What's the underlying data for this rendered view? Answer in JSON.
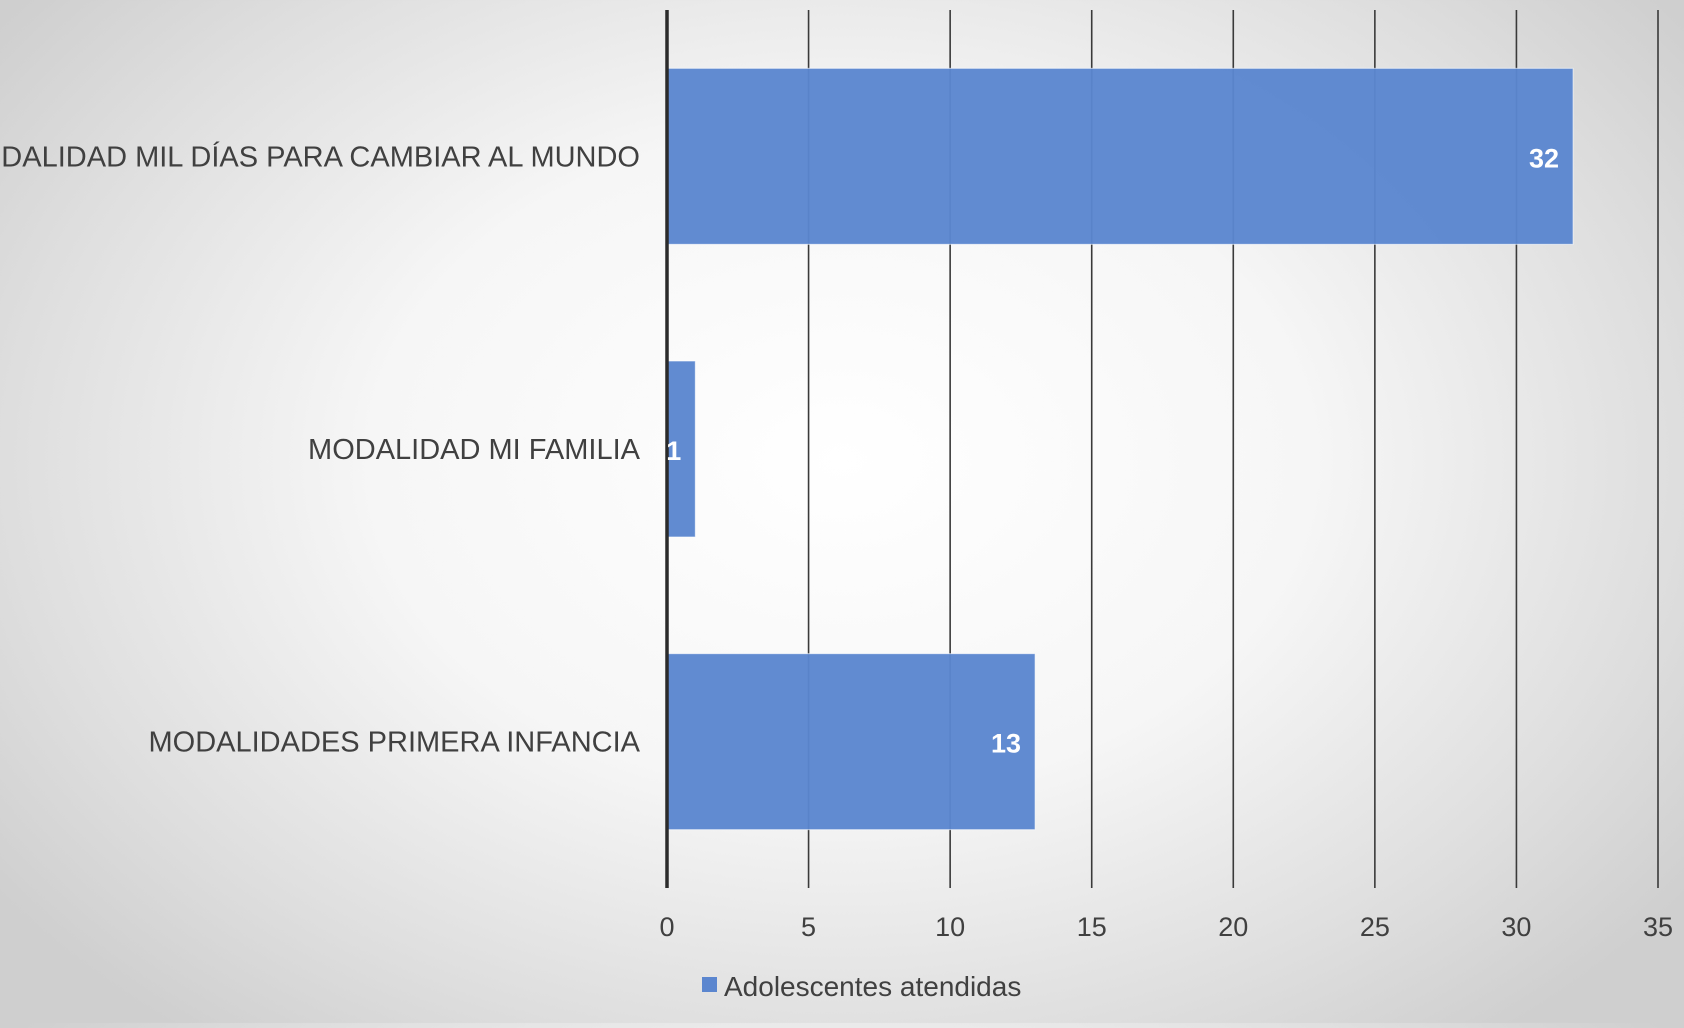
{
  "chart_data": {
    "type": "bar",
    "orientation": "horizontal",
    "categories": [
      "MODALIDAD MIL DÍAS PARA CAMBIAR AL MUNDO",
      "MODALIDAD MI FAMILIA",
      "MODALIDADES PRIMERA INFANCIA"
    ],
    "series": [
      {
        "name": "Adolescentes atendidas",
        "values": [
          32,
          1,
          13
        ],
        "color": "#5b86cf"
      }
    ],
    "xlim": [
      0,
      35
    ],
    "x_ticks": [
      0,
      5,
      10,
      15,
      20,
      25,
      30,
      35
    ],
    "data_labels": true,
    "grid": true,
    "legend_position": "bottom"
  }
}
